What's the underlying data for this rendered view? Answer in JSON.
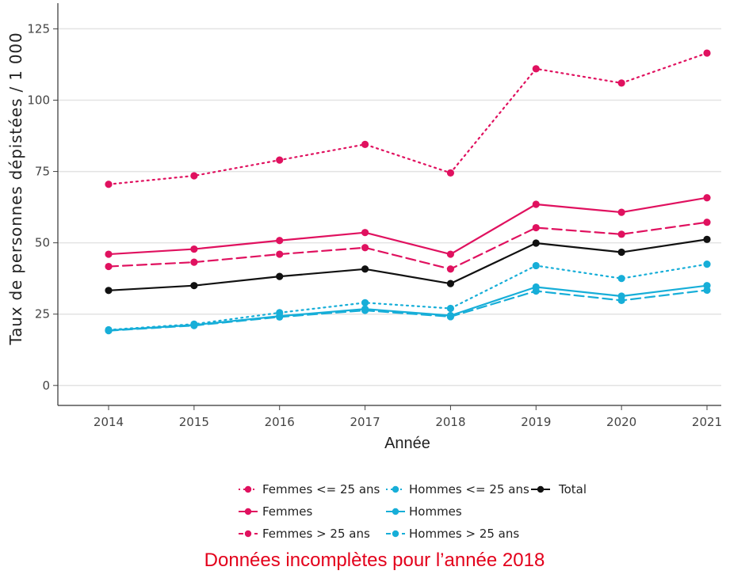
{
  "chart_data": {
    "type": "line",
    "title": "",
    "xlabel": "Année",
    "ylabel": "Taux de personnes dépistées / 1 000",
    "x": [
      2014,
      2015,
      2016,
      2017,
      2018,
      2019,
      2020,
      2021
    ],
    "ylim": [
      -7,
      134
    ],
    "yticks": [
      0,
      25,
      50,
      75,
      100,
      125
    ],
    "grid": true,
    "legend_position": "bottom",
    "series": [
      {
        "name": "Femmes <= 25 ans",
        "color": "#e0115f",
        "dash": "dotted",
        "values": [
          70.5,
          73.5,
          79,
          84.5,
          74.5,
          111,
          106,
          116.5
        ]
      },
      {
        "name": "Femmes",
        "color": "#e0115f",
        "dash": "solid",
        "values": [
          46,
          47.8,
          50.8,
          53.6,
          46,
          63.5,
          60.7,
          65.8
        ]
      },
      {
        "name": "Femmes > 25 ans",
        "color": "#e0115f",
        "dash": "dashed",
        "values": [
          41.7,
          43.2,
          46,
          48.3,
          40.8,
          55.3,
          53,
          57.2
        ]
      },
      {
        "name": "Hommes <= 25 ans",
        "color": "#17aed8",
        "dash": "dotted",
        "values": [
          19.5,
          21.5,
          25.5,
          29,
          27,
          42,
          37.5,
          42.5
        ]
      },
      {
        "name": "Hommes",
        "color": "#17aed8",
        "dash": "solid",
        "values": [
          19.3,
          21.2,
          24.3,
          26.8,
          24.5,
          34.5,
          31.3,
          35
        ]
      },
      {
        "name": "Hommes > 25 ans",
        "color": "#17aed8",
        "dash": "dashed",
        "values": [
          19.2,
          21,
          24,
          26.3,
          24.1,
          33.1,
          29.8,
          33.4
        ]
      },
      {
        "name": "Total",
        "color": "#111111",
        "dash": "solid",
        "values": [
          33.3,
          35,
          38.2,
          40.8,
          35.7,
          49.9,
          46.7,
          51.2
        ]
      }
    ]
  },
  "note": {
    "text": "Données incomplètes pour l’année 2018",
    "color": "#e3001b"
  }
}
